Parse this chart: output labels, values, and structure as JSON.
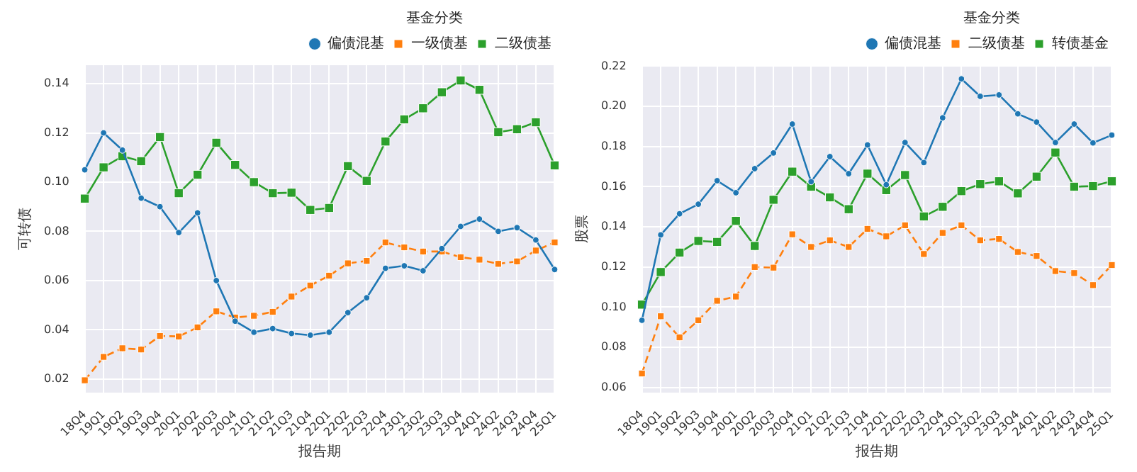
{
  "chart_data": [
    {
      "type": "line",
      "xlabel": "报告期",
      "ylabel": "可转债",
      "legend_title": "基金分类",
      "legend": "top right",
      "grid": true,
      "categories": [
        "18Q4",
        "19Q1",
        "19Q2",
        "19Q3",
        "19Q4",
        "20Q1",
        "20Q2",
        "20Q3",
        "20Q4",
        "21Q1",
        "21Q2",
        "21Q3",
        "21Q4",
        "22Q1",
        "22Q2",
        "22Q3",
        "22Q4",
        "23Q1",
        "23Q2",
        "23Q3",
        "23Q4",
        "24Q1",
        "24Q2",
        "24Q3",
        "24Q4",
        "25Q1"
      ],
      "ylim": [
        0.0145,
        0.1475
      ],
      "yticks": [
        {
          "value": 0.02,
          "label": "0.02"
        },
        {
          "value": 0.04,
          "label": "0.04"
        },
        {
          "value": 0.06,
          "label": "0.06"
        },
        {
          "value": 0.08,
          "label": "0.08"
        },
        {
          "value": 0.1,
          "label": "0.10"
        },
        {
          "value": 0.12,
          "label": "0.12"
        },
        {
          "value": 0.14,
          "label": "0.14"
        }
      ],
      "series": [
        {
          "name": "偏债混基",
          "color": "#1f77b4",
          "marker": "circle",
          "line_style": "solid",
          "values": [
            0.105,
            0.12,
            0.113,
            0.0935,
            0.09,
            0.0795,
            0.0875,
            0.06,
            0.0435,
            0.039,
            0.0405,
            0.0385,
            0.0378,
            0.039,
            0.047,
            0.053,
            0.065,
            0.066,
            0.064,
            0.073,
            0.082,
            0.085,
            0.08,
            0.0815,
            0.0765,
            0.0645
          ]
        },
        {
          "name": "一级债基",
          "color": "#ff7f0e",
          "marker": "square",
          "line_style": "dashed",
          "values": [
            0.0195,
            0.029,
            0.0325,
            0.032,
            0.0375,
            0.0373,
            0.041,
            0.0475,
            0.045,
            0.0457,
            0.0473,
            0.0535,
            0.058,
            0.062,
            0.067,
            0.068,
            0.0755,
            0.0735,
            0.0718,
            0.0718,
            0.0695,
            0.0685,
            0.0668,
            0.0678,
            0.0722,
            0.0755
          ]
        },
        {
          "name": "二级债基",
          "color": "#2ca02c",
          "marker": "square",
          "line_style": "solid",
          "values": [
            0.0933,
            0.106,
            0.1105,
            0.1085,
            0.1183,
            0.0955,
            0.103,
            0.116,
            0.107,
            0.1,
            0.0955,
            0.0957,
            0.0887,
            0.0895,
            0.1065,
            0.1005,
            0.1165,
            0.1255,
            0.13,
            0.1365,
            0.1413,
            0.1375,
            0.1203,
            0.1215,
            0.1243,
            0.1068
          ]
        }
      ]
    },
    {
      "type": "line",
      "xlabel": "报告期",
      "ylabel": "股票",
      "legend_title": "基金分类",
      "legend": "top right",
      "grid": true,
      "categories": [
        "18Q4",
        "19Q1",
        "19Q2",
        "19Q3",
        "19Q4",
        "20Q1",
        "20Q2",
        "20Q3",
        "20Q4",
        "21Q1",
        "21Q2",
        "21Q3",
        "21Q4",
        "22Q1",
        "22Q2",
        "22Q3",
        "22Q4",
        "23Q1",
        "23Q2",
        "23Q3",
        "23Q4",
        "24Q1",
        "24Q2",
        "24Q3",
        "24Q4",
        "25Q1"
      ],
      "ylim": [
        0.0575,
        0.2205
      ],
      "yticks": [
        {
          "value": 0.06,
          "label": "0.06"
        },
        {
          "value": 0.08,
          "label": "0.08"
        },
        {
          "value": 0.1,
          "label": "0.10"
        },
        {
          "value": 0.12,
          "label": "0.12"
        },
        {
          "value": 0.14,
          "label": "0.14"
        },
        {
          "value": 0.16,
          "label": "0.16"
        },
        {
          "value": 0.18,
          "label": "0.18"
        },
        {
          "value": 0.2,
          "label": "0.20"
        },
        {
          "value": 0.22,
          "label": "0.22"
        }
      ],
      "series": [
        {
          "name": "偏债混基",
          "color": "#1f77b4",
          "marker": "circle",
          "line_style": "solid",
          "values": [
            0.0935,
            0.136,
            0.1465,
            0.1513,
            0.163,
            0.157,
            0.169,
            0.1768,
            0.1912,
            0.1625,
            0.175,
            0.1665,
            0.1808,
            0.161,
            0.182,
            0.172,
            0.1943,
            0.2137,
            0.205,
            0.2057,
            0.1963,
            0.1922,
            0.182,
            0.1912,
            0.1818,
            0.1857
          ]
        },
        {
          "name": "二级债基",
          "color": "#ff7f0e",
          "marker": "square",
          "line_style": "dashed",
          "values": [
            0.067,
            0.0955,
            0.085,
            0.0935,
            0.1032,
            0.1053,
            0.12,
            0.1197,
            0.1363,
            0.13,
            0.1333,
            0.13,
            0.139,
            0.1353,
            0.1408,
            0.1265,
            0.137,
            0.1408,
            0.1333,
            0.134,
            0.1275,
            0.1255,
            0.118,
            0.117,
            0.111,
            0.121
          ]
        },
        {
          "name": "转债基金",
          "color": "#2ca02c",
          "marker": "square",
          "line_style": "solid",
          "values": [
            0.1013,
            0.1175,
            0.1272,
            0.133,
            0.1325,
            0.143,
            0.1305,
            0.1535,
            0.1675,
            0.16,
            0.1547,
            0.1488,
            0.1665,
            0.1583,
            0.1658,
            0.1452,
            0.15,
            0.1578,
            0.1613,
            0.1627,
            0.1567,
            0.165,
            0.177,
            0.16,
            0.1603,
            0.1627
          ]
        }
      ]
    }
  ]
}
